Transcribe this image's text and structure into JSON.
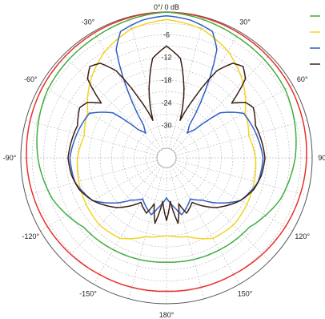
{
  "chart_data": {
    "type": "polar-line",
    "title": "",
    "radial_axis": {
      "unit": "dB",
      "range": [
        -36,
        0
      ],
      "ring_labels": [
        "-6",
        "-12",
        "-18",
        "-24",
        "-30"
      ],
      "zero_label": "0°/ 0 dB"
    },
    "angle_labels": [
      {
        "deg": -30,
        "text": "-30°"
      },
      {
        "deg": 30,
        "text": "30°"
      },
      {
        "deg": -60,
        "text": "-60°"
      },
      {
        "deg": 60,
        "text": "60°"
      },
      {
        "deg": -90,
        "text": "-90°"
      },
      {
        "deg": 90,
        "text": "90°"
      },
      {
        "deg": -120,
        "text": "-120°"
      },
      {
        "deg": 120,
        "text": "120°"
      },
      {
        "deg": -150,
        "text": "-150°"
      },
      {
        "deg": 150,
        "text": "150°"
      },
      {
        "deg": 180,
        "text": "180°"
      }
    ],
    "legend_placement": "top-right",
    "grid": true,
    "series": [
      {
        "color": "#e8302b",
        "points": [
          [
            0,
            0
          ],
          [
            30,
            -0.4
          ],
          [
            60,
            -0.8
          ],
          [
            90,
            -1.5
          ],
          [
            120,
            -2.2
          ],
          [
            150,
            -3
          ],
          [
            180,
            -3.3
          ],
          [
            210,
            -3
          ],
          [
            240,
            -2.2
          ],
          [
            270,
            -1.5
          ],
          [
            300,
            -0.8
          ],
          [
            330,
            -0.4
          ],
          [
            360,
            0
          ]
        ]
      },
      {
        "color": "#3fae3f",
        "points": [
          [
            0,
            0
          ],
          [
            30,
            -1.5
          ],
          [
            60,
            -2.3
          ],
          [
            90,
            -4.5
          ],
          [
            110,
            -6.5
          ],
          [
            130,
            -10
          ],
          [
            150,
            -10.5
          ],
          [
            180,
            -11
          ],
          [
            210,
            -10.5
          ],
          [
            230,
            -10
          ],
          [
            250,
            -6.5
          ],
          [
            270,
            -4.5
          ],
          [
            300,
            -2.3
          ],
          [
            330,
            -1.5
          ],
          [
            360,
            0
          ]
        ]
      },
      {
        "color": "#f2d422",
        "points": [
          [
            0,
            -2
          ],
          [
            15,
            -3.2
          ],
          [
            30,
            -6
          ],
          [
            45,
            -10
          ],
          [
            60,
            -14.5
          ],
          [
            75,
            -16
          ],
          [
            90,
            -15
          ],
          [
            105,
            -14.5
          ],
          [
            120,
            -14
          ],
          [
            135,
            -13.5
          ],
          [
            150,
            -14
          ],
          [
            165,
            -17
          ],
          [
            180,
            -18
          ],
          [
            195,
            -17
          ],
          [
            210,
            -14
          ],
          [
            225,
            -13.5
          ],
          [
            240,
            -14
          ],
          [
            255,
            -14.5
          ],
          [
            270,
            -15
          ],
          [
            285,
            -16
          ],
          [
            300,
            -14.5
          ],
          [
            315,
            -10
          ],
          [
            330,
            -6
          ],
          [
            345,
            -3.2
          ],
          [
            360,
            -2
          ]
        ]
      },
      {
        "color": "#2f5fc4",
        "points": [
          [
            0,
            -1
          ],
          [
            10,
            -1.6
          ],
          [
            20,
            -3
          ],
          [
            25,
            -7
          ],
          [
            30,
            -18
          ],
          [
            35,
            -28
          ],
          [
            40,
            -30
          ],
          [
            45,
            -28
          ],
          [
            50,
            -20
          ],
          [
            60,
            -15
          ],
          [
            75,
            -14
          ],
          [
            90,
            -13
          ],
          [
            105,
            -13.5
          ],
          [
            120,
            -16
          ],
          [
            140,
            -24
          ],
          [
            150,
            -26
          ],
          [
            165,
            -23
          ],
          [
            170,
            -25
          ],
          [
            180,
            -28
          ],
          [
            190,
            -25
          ],
          [
            195,
            -23
          ],
          [
            210,
            -26
          ],
          [
            220,
            -24
          ],
          [
            240,
            -16
          ],
          [
            255,
            -13.5
          ],
          [
            270,
            -13
          ],
          [
            285,
            -14
          ],
          [
            300,
            -15
          ],
          [
            310,
            -20
          ],
          [
            315,
            -28
          ],
          [
            320,
            -30
          ],
          [
            325,
            -28
          ],
          [
            330,
            -18
          ],
          [
            335,
            -7
          ],
          [
            340,
            -3
          ],
          [
            350,
            -1.6
          ],
          [
            360,
            -1
          ]
        ]
      },
      {
        "color": "#3d1f18",
        "points": [
          [
            0,
            -9
          ],
          [
            8,
            -12
          ],
          [
            12,
            -17
          ],
          [
            16,
            -22
          ],
          [
            20,
            -28
          ],
          [
            25,
            -21
          ],
          [
            30,
            -12
          ],
          [
            35,
            -8
          ],
          [
            40,
            -7
          ],
          [
            45,
            -9
          ],
          [
            50,
            -16
          ],
          [
            55,
            -13
          ],
          [
            60,
            -12
          ],
          [
            70,
            -13.5
          ],
          [
            80,
            -13
          ],
          [
            90,
            -12.5
          ],
          [
            100,
            -13
          ],
          [
            110,
            -14
          ],
          [
            120,
            -16
          ],
          [
            135,
            -20
          ],
          [
            150,
            -25
          ],
          [
            160,
            -23
          ],
          [
            165,
            -26
          ],
          [
            170,
            -21
          ],
          [
            175,
            -27
          ],
          [
            180,
            -22
          ],
          [
            185,
            -27
          ],
          [
            190,
            -21
          ],
          [
            195,
            -26
          ],
          [
            200,
            -23
          ],
          [
            210,
            -25
          ],
          [
            225,
            -20
          ],
          [
            240,
            -16
          ],
          [
            250,
            -14
          ],
          [
            260,
            -13
          ],
          [
            270,
            -12.5
          ],
          [
            280,
            -13
          ],
          [
            290,
            -13.5
          ],
          [
            300,
            -12
          ],
          [
            305,
            -13
          ],
          [
            310,
            -16
          ],
          [
            315,
            -9
          ],
          [
            320,
            -7
          ],
          [
            325,
            -8
          ],
          [
            330,
            -12
          ],
          [
            335,
            -21
          ],
          [
            340,
            -28
          ],
          [
            344,
            -22
          ],
          [
            348,
            -17
          ],
          [
            352,
            -12
          ],
          [
            360,
            -9
          ]
        ]
      }
    ]
  }
}
